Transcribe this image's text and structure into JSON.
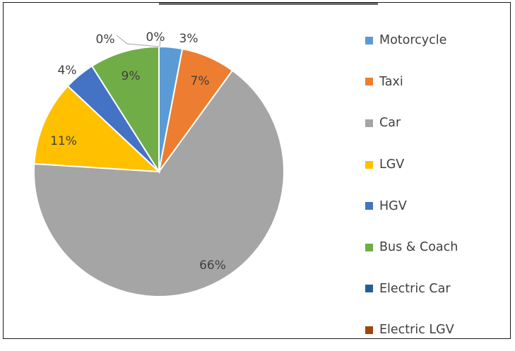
{
  "chart_data": {
    "type": "pie",
    "categories": [
      "Motorcycle",
      "Taxi",
      "Car",
      "LGV",
      "HGV",
      "Bus & Coach",
      "Electric Car",
      "Electric LGV"
    ],
    "values": [
      3,
      7,
      66,
      11,
      4,
      9,
      0,
      0
    ],
    "labels": [
      "3%",
      "7%",
      "66%",
      "11%",
      "4%",
      "9%",
      "0%",
      "0%"
    ],
    "colors": [
      "#5b9bd5",
      "#ed7d31",
      "#a5a5a5",
      "#ffc000",
      "#4472c4",
      "#70ad47",
      "#255e91",
      "#9e480e"
    ],
    "legend": "right"
  }
}
